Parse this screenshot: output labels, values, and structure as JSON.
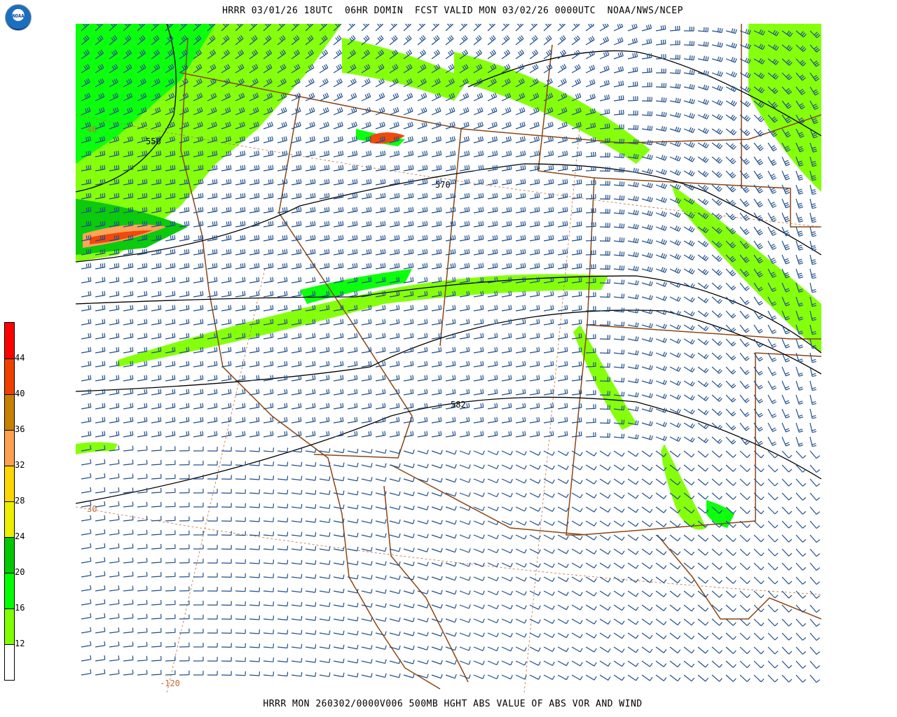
{
  "header": {
    "title": "HRRR 03/01/26 18UTC  06HR DOMIN  FCST VALID MON 03/02/26 0000UTC  NOAA/NWS/NCEP"
  },
  "footer": {
    "caption": "HRRR MON 260302/0000V006 500MB HGHT ABS VALUE OF ABS VOR AND WIND"
  },
  "logo": {
    "text": "NOAA"
  },
  "colorbar": {
    "labels": [
      "44",
      "40",
      "36",
      "32",
      "28",
      "24",
      "20",
      "16",
      "12"
    ],
    "colors": [
      "#ff0000",
      "#f04000",
      "#c88000",
      "#ffa050",
      "#ffd700",
      "#eeee00",
      "#00c800",
      "#00ff00",
      "#80ff00",
      "#ffffff"
    ]
  },
  "map": {
    "contour_labels": [
      "558",
      "570",
      "582"
    ],
    "grid_labels": {
      "lat": "30",
      "lon": "-120",
      "lat2": "40"
    },
    "colors": {
      "contour": "#000000",
      "border": "#8b4513",
      "barb": "#1f4e8c",
      "grid": "#c0703a"
    }
  }
}
